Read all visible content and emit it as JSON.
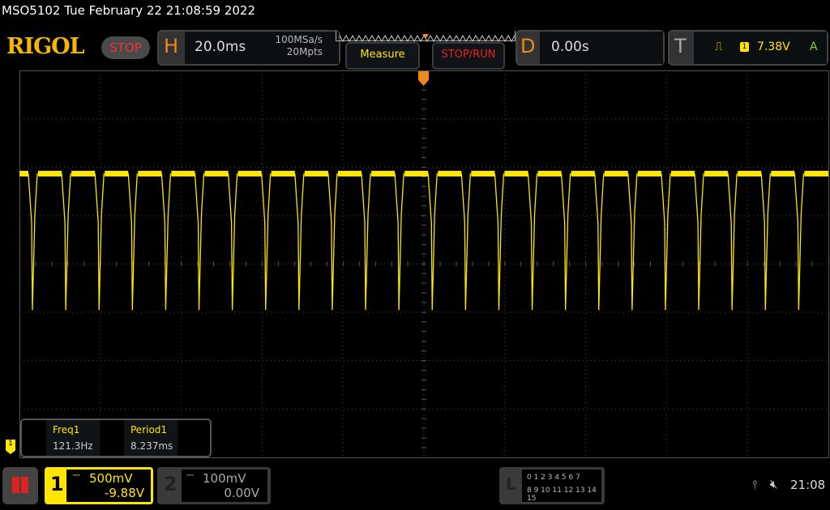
{
  "header": {
    "title": "MSO5102  Tue February 22 21:08:59 2022",
    "logo": "RIGOL",
    "run_state": "STOP"
  },
  "horizontal": {
    "label": "H",
    "timebase": "20.0ms",
    "sample_rate": "100MSa/s",
    "memory_depth": "20Mpts"
  },
  "buttons": {
    "measure": "Measure",
    "stop_run": "STOP/RUN"
  },
  "delay": {
    "label": "D",
    "value": "0.00s"
  },
  "trigger": {
    "label": "T",
    "source": "1",
    "level": "7.38V",
    "mode": "A"
  },
  "measurements": [
    {
      "name": "Freq1",
      "value": "121.3Hz"
    },
    {
      "name": "Period1",
      "value": "8.237ms"
    }
  ],
  "channel1": {
    "number": "1",
    "scale": "500mV",
    "offset": "-9.88V",
    "color": "#ffe600"
  },
  "channel2": {
    "number": "2",
    "scale": "100mV",
    "offset": "0.00V"
  },
  "logic": {
    "label": "L",
    "row1": "0 1 2 3  4 5 6 7",
    "row2": "8 9 10 11 12 13 14 15"
  },
  "status": {
    "time": "21:08"
  },
  "waveform": {
    "period_ms": 8.237,
    "color": "#ffe600"
  }
}
